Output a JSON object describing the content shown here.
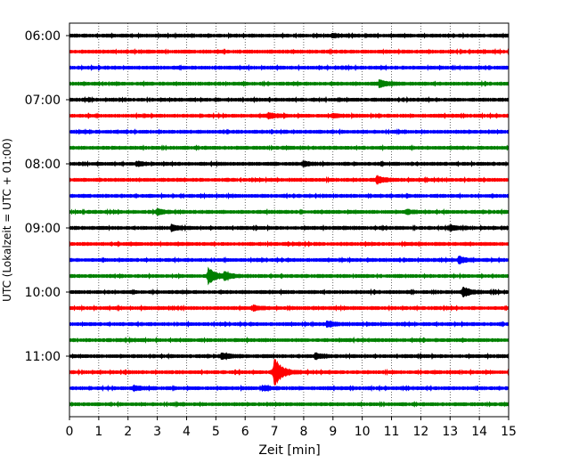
{
  "chart_data": {
    "type": "line",
    "xlabel": "Zeit  [min]",
    "ylabel": "UTC (Lokalzeit = UTC + 01:00)",
    "xlim": [
      0,
      15
    ],
    "x_ticks": [
      0,
      1,
      2,
      3,
      4,
      5,
      6,
      7,
      8,
      9,
      10,
      11,
      12,
      13,
      14,
      15
    ],
    "y_tick_labels": [
      "06:00",
      "07:00",
      "08:00",
      "09:00",
      "10:00",
      "11:00"
    ],
    "grid": "vertical dotted lines at each minute",
    "trace_interval_minutes": 15,
    "color_cycle": [
      "#000000",
      "#ff0000",
      "#0000ff",
      "#008000"
    ],
    "series": [
      {
        "start": "06:00",
        "color": "#000000",
        "events": [
          {
            "t": 9.0,
            "amp": 0.15
          }
        ]
      },
      {
        "start": "06:15",
        "color": "#ff0000",
        "events": []
      },
      {
        "start": "06:30",
        "color": "#0000ff",
        "events": []
      },
      {
        "start": "06:45",
        "color": "#008000",
        "events": [
          {
            "t": 10.6,
            "amp": 0.35
          }
        ]
      },
      {
        "start": "07:00",
        "color": "#000000",
        "events": []
      },
      {
        "start": "07:15",
        "color": "#ff0000",
        "events": [
          {
            "t": 6.8,
            "amp": 0.3
          },
          {
            "t": 9.0,
            "amp": 0.15
          }
        ]
      },
      {
        "start": "07:30",
        "color": "#0000ff",
        "events": []
      },
      {
        "start": "07:45",
        "color": "#008000",
        "events": []
      },
      {
        "start": "08:00",
        "color": "#000000",
        "events": [
          {
            "t": 2.3,
            "amp": 0.2
          },
          {
            "t": 8.0,
            "amp": 0.2
          }
        ]
      },
      {
        "start": "08:15",
        "color": "#ff0000",
        "events": [
          {
            "t": 10.5,
            "amp": 0.4
          }
        ]
      },
      {
        "start": "08:30",
        "color": "#0000ff",
        "events": []
      },
      {
        "start": "08:45",
        "color": "#008000",
        "events": [
          {
            "t": 3.0,
            "amp": 0.25
          },
          {
            "t": 11.5,
            "amp": 0.2
          }
        ]
      },
      {
        "start": "09:00",
        "color": "#000000",
        "events": [
          {
            "t": 3.5,
            "amp": 0.3
          },
          {
            "t": 13.0,
            "amp": 0.25
          }
        ]
      },
      {
        "start": "09:15",
        "color": "#ff0000",
        "events": []
      },
      {
        "start": "09:30",
        "color": "#0000ff",
        "events": [
          {
            "t": 13.3,
            "amp": 0.35
          }
        ]
      },
      {
        "start": "09:45",
        "color": "#008000",
        "events": [
          {
            "t": 4.75,
            "amp": 0.9
          },
          {
            "t": 5.3,
            "amp": 0.35
          }
        ]
      },
      {
        "start": "10:00",
        "color": "#000000",
        "events": [
          {
            "t": 13.45,
            "amp": 0.5
          }
        ]
      },
      {
        "start": "10:15",
        "color": "#ff0000",
        "events": [
          {
            "t": 6.3,
            "amp": 0.25
          }
        ]
      },
      {
        "start": "10:30",
        "color": "#0000ff",
        "events": [
          {
            "t": 8.8,
            "amp": 0.25
          }
        ]
      },
      {
        "start": "10:45",
        "color": "#008000",
        "events": []
      },
      {
        "start": "11:00",
        "color": "#000000",
        "events": [
          {
            "t": 5.2,
            "amp": 0.3
          },
          {
            "t": 8.4,
            "amp": 0.3
          }
        ]
      },
      {
        "start": "11:15",
        "color": "#ff0000",
        "events": [
          {
            "t": 7.0,
            "amp": 1.7
          }
        ]
      },
      {
        "start": "11:30",
        "color": "#0000ff",
        "events": [
          {
            "t": 2.2,
            "amp": 0.25
          },
          {
            "t": 6.6,
            "amp": 0.2
          }
        ]
      },
      {
        "start": "11:45",
        "color": "#008000",
        "events": []
      }
    ]
  }
}
